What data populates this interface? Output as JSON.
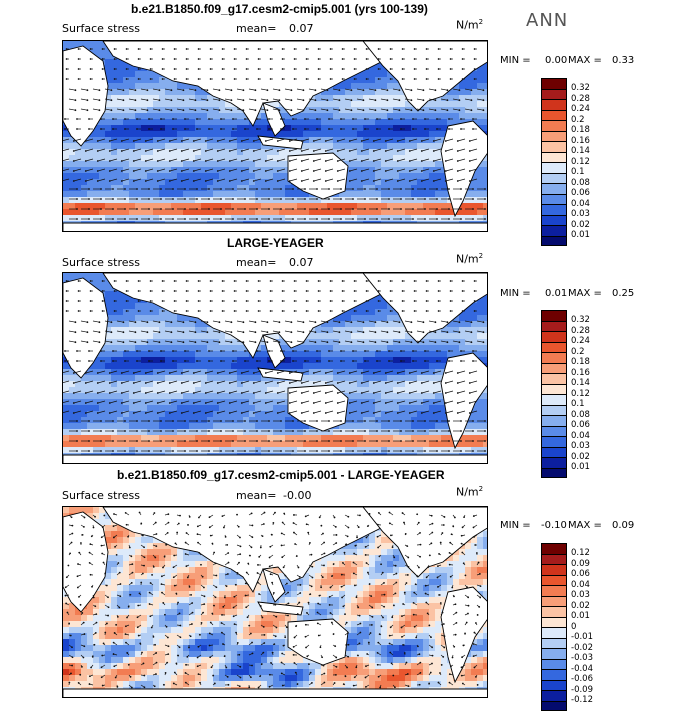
{
  "season": "ANN",
  "panels": [
    {
      "title": "b.e21.B1850.f09_g17.cesm2-cmip5.001 (yrs 100-139)",
      "field": "Surface stress",
      "mean_label": "mean=",
      "mean": "0.07",
      "units_base": "N/m",
      "units_exp": "2",
      "min_label": "MIN =",
      "min": "0.00",
      "max_label": "MAX =",
      "max": "0.33",
      "palette": "abs",
      "levels": [
        "0.32",
        "0.28",
        "0.24",
        "0.2",
        "0.18",
        "0.16",
        "0.14",
        "0.12",
        "0.1",
        "0.08",
        "0.06",
        "0.04",
        "0.03",
        "0.02",
        "0.01"
      ]
    },
    {
      "title": "LARGE-YEAGER",
      "field": "Surface stress",
      "mean_label": "mean=",
      "mean": "0.07",
      "units_base": "N/m",
      "units_exp": "2",
      "min_label": "MIN =",
      "min": "0.01",
      "max_label": "MAX =",
      "max": "0.25",
      "palette": "abs",
      "levels": [
        "0.32",
        "0.28",
        "0.24",
        "0.2",
        "0.18",
        "0.16",
        "0.14",
        "0.12",
        "0.1",
        "0.08",
        "0.06",
        "0.04",
        "0.03",
        "0.02",
        "0.01"
      ]
    },
    {
      "title": "b.e21.B1850.f09_g17.cesm2-cmip5.001 - LARGE-YEAGER",
      "field": "Surface stress",
      "mean_label": "mean=",
      "mean": "-0.00",
      "units_base": "N/m",
      "units_exp": "2",
      "min_label": "MIN =",
      "min": "-0.10",
      "max_label": "MAX =",
      "max": "0.09",
      "palette": "diff",
      "levels": [
        "0.12",
        "0.09",
        "0.06",
        "0.04",
        "0.03",
        "0.02",
        "0.01",
        "0",
        "-0.01",
        "-0.02",
        "-0.03",
        "-0.04",
        "-0.06",
        "-0.09",
        "-0.12"
      ]
    }
  ],
  "colors": {
    "abs_palette": [
      "#6e0000",
      "#a51c1c",
      "#d0341c",
      "#e9562e",
      "#f27c52",
      "#f79e78",
      "#fbc3a4",
      "#fde6d4",
      "#ddeafa",
      "#b3cef4",
      "#86aeee",
      "#5a8be8",
      "#3468df",
      "#1a44cc",
      "#0c1f9f",
      "#040b6e"
    ],
    "diff_palette": [
      "#6e0000",
      "#a51c1c",
      "#d0341c",
      "#e9562e",
      "#f27c52",
      "#f79e78",
      "#fbc3a4",
      "#fde6d4",
      "#ddeafa",
      "#b3cef4",
      "#86aeee",
      "#5a8be8",
      "#3468df",
      "#1a44cc",
      "#0c1f9f",
      "#040b6e"
    ],
    "land": "#ffffff",
    "coast": "#000000",
    "vector": "#111111"
  },
  "chart_data": [
    {
      "type": "heatmap",
      "title": "b.e21.B1850.f09_g17.cesm2-cmip5.001 (yrs 100-139)",
      "variable": "Surface stress",
      "units": "N/m^2",
      "season": "ANN",
      "mean": 0.07,
      "min": 0.0,
      "max": 0.33,
      "contour_levels": [
        0.01,
        0.02,
        0.03,
        0.04,
        0.06,
        0.08,
        0.1,
        0.12,
        0.14,
        0.16,
        0.18,
        0.2,
        0.24,
        0.28,
        0.32
      ],
      "overlay": "wind stress vectors"
    },
    {
      "type": "heatmap",
      "title": "LARGE-YEAGER",
      "variable": "Surface stress",
      "units": "N/m^2",
      "season": "ANN",
      "mean": 0.07,
      "min": 0.01,
      "max": 0.25,
      "contour_levels": [
        0.01,
        0.02,
        0.03,
        0.04,
        0.06,
        0.08,
        0.1,
        0.12,
        0.14,
        0.16,
        0.18,
        0.2,
        0.24,
        0.28,
        0.32
      ],
      "overlay": "wind stress vectors"
    },
    {
      "type": "heatmap",
      "title": "b.e21.B1850.f09_g17.cesm2-cmip5.001 - LARGE-YEAGER",
      "variable": "Surface stress",
      "units": "N/m^2",
      "season": "ANN",
      "mean": -0.0,
      "min": -0.1,
      "max": 0.09,
      "contour_levels": [
        -0.12,
        -0.09,
        -0.06,
        -0.04,
        -0.03,
        -0.02,
        -0.01,
        0,
        0.01,
        0.02,
        0.03,
        0.04,
        0.06,
        0.09,
        0.12
      ],
      "overlay": "wind stress difference vectors"
    }
  ]
}
